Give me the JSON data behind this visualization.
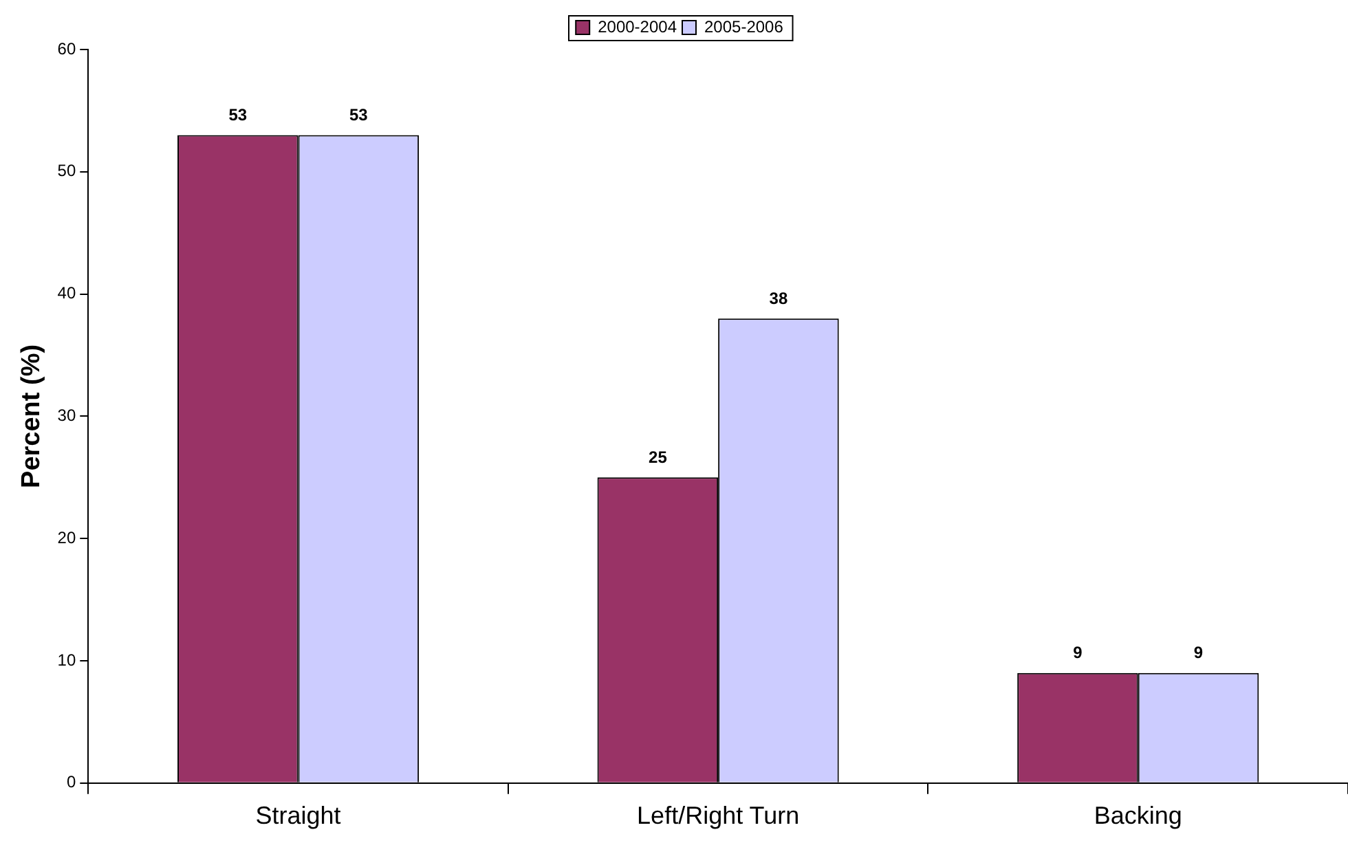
{
  "chart_data": {
    "type": "bar",
    "ylabel": "Percent (%)",
    "categories": [
      "Straight",
      "Left/Right Turn",
      "Backing"
    ],
    "series": [
      {
        "name": "2000-2004",
        "color": "#993366",
        "values": [
          53,
          25,
          9
        ]
      },
      {
        "name": "2005-2006",
        "color": "#ccccff",
        "values": [
          53,
          38,
          9
        ]
      }
    ],
    "ylim": [
      0,
      60
    ],
    "yticks": [
      0,
      10,
      20,
      30,
      40,
      50,
      60
    ],
    "data_labels": true,
    "legend": "top"
  }
}
